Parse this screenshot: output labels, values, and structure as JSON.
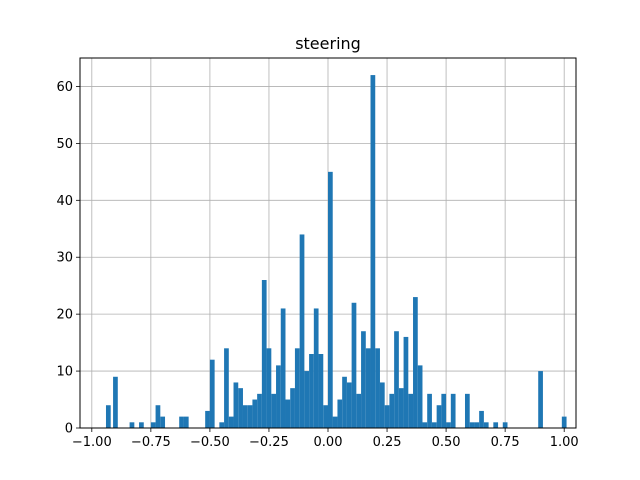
{
  "chart_data": {
    "type": "bar",
    "title": "steering",
    "xlabel": "",
    "ylabel": "",
    "xlim": [
      -1.05,
      1.05
    ],
    "ylim": [
      0,
      65
    ],
    "grid": true,
    "bar_color": "#1f77b4",
    "x_ticks": [
      -1.0,
      -0.75,
      -0.5,
      -0.25,
      0.0,
      0.25,
      0.5,
      0.75,
      1.0
    ],
    "x_tick_labels": [
      "−1.00",
      "−0.75",
      "−0.50",
      "−0.25",
      "0.00",
      "0.25",
      "0.50",
      "0.75",
      "1.00"
    ],
    "y_ticks": [
      0,
      10,
      20,
      30,
      40,
      50,
      60
    ],
    "y_tick_labels": [
      "0",
      "10",
      "20",
      "30",
      "40",
      "50",
      "60"
    ],
    "bin_width": 0.02,
    "bins": [
      {
        "x": -0.94,
        "count": 4
      },
      {
        "x": -0.91,
        "count": 9
      },
      {
        "x": -0.84,
        "count": 1
      },
      {
        "x": -0.8,
        "count": 1
      },
      {
        "x": -0.75,
        "count": 1
      },
      {
        "x": -0.73,
        "count": 4
      },
      {
        "x": -0.71,
        "count": 2
      },
      {
        "x": -0.63,
        "count": 2
      },
      {
        "x": -0.61,
        "count": 2
      },
      {
        "x": -0.52,
        "count": 3
      },
      {
        "x": -0.5,
        "count": 12
      },
      {
        "x": -0.46,
        "count": 1
      },
      {
        "x": -0.44,
        "count": 14
      },
      {
        "x": -0.42,
        "count": 2
      },
      {
        "x": -0.4,
        "count": 8
      },
      {
        "x": -0.38,
        "count": 7
      },
      {
        "x": -0.36,
        "count": 4
      },
      {
        "x": -0.34,
        "count": 4
      },
      {
        "x": -0.32,
        "count": 5
      },
      {
        "x": -0.3,
        "count": 6
      },
      {
        "x": -0.28,
        "count": 26
      },
      {
        "x": -0.26,
        "count": 14
      },
      {
        "x": -0.24,
        "count": 6
      },
      {
        "x": -0.22,
        "count": 11
      },
      {
        "x": -0.2,
        "count": 21
      },
      {
        "x": -0.18,
        "count": 5
      },
      {
        "x": -0.16,
        "count": 7
      },
      {
        "x": -0.14,
        "count": 14
      },
      {
        "x": -0.12,
        "count": 34
      },
      {
        "x": -0.1,
        "count": 10
      },
      {
        "x": -0.08,
        "count": 13
      },
      {
        "x": -0.06,
        "count": 21
      },
      {
        "x": -0.04,
        "count": 13
      },
      {
        "x": -0.02,
        "count": 4
      },
      {
        "x": 0.0,
        "count": 2
      },
      {
        "x": 0.0,
        "count": 45
      },
      {
        "x": 0.02,
        "count": 2
      },
      {
        "x": 0.04,
        "count": 5
      },
      {
        "x": 0.06,
        "count": 9
      },
      {
        "x": 0.08,
        "count": 8
      },
      {
        "x": 0.1,
        "count": 22
      },
      {
        "x": 0.12,
        "count": 6
      },
      {
        "x": 0.14,
        "count": 17
      },
      {
        "x": 0.16,
        "count": 14
      },
      {
        "x": 0.18,
        "count": 62
      },
      {
        "x": 0.2,
        "count": 14
      },
      {
        "x": 0.22,
        "count": 8
      },
      {
        "x": 0.24,
        "count": 4
      },
      {
        "x": 0.26,
        "count": 6
      },
      {
        "x": 0.28,
        "count": 17
      },
      {
        "x": 0.3,
        "count": 7
      },
      {
        "x": 0.32,
        "count": 16
      },
      {
        "x": 0.34,
        "count": 6
      },
      {
        "x": 0.36,
        "count": 23
      },
      {
        "x": 0.38,
        "count": 11
      },
      {
        "x": 0.4,
        "count": 1
      },
      {
        "x": 0.42,
        "count": 6
      },
      {
        "x": 0.44,
        "count": 1
      },
      {
        "x": 0.46,
        "count": 4
      },
      {
        "x": 0.48,
        "count": 6
      },
      {
        "x": 0.5,
        "count": 1
      },
      {
        "x": 0.52,
        "count": 6
      },
      {
        "x": 0.58,
        "count": 6
      },
      {
        "x": 0.6,
        "count": 1
      },
      {
        "x": 0.62,
        "count": 1
      },
      {
        "x": 0.64,
        "count": 3
      },
      {
        "x": 0.66,
        "count": 1
      },
      {
        "x": 0.7,
        "count": 1
      },
      {
        "x": 0.74,
        "count": 1
      },
      {
        "x": 0.89,
        "count": 10
      },
      {
        "x": 0.99,
        "count": 2
      }
    ]
  }
}
